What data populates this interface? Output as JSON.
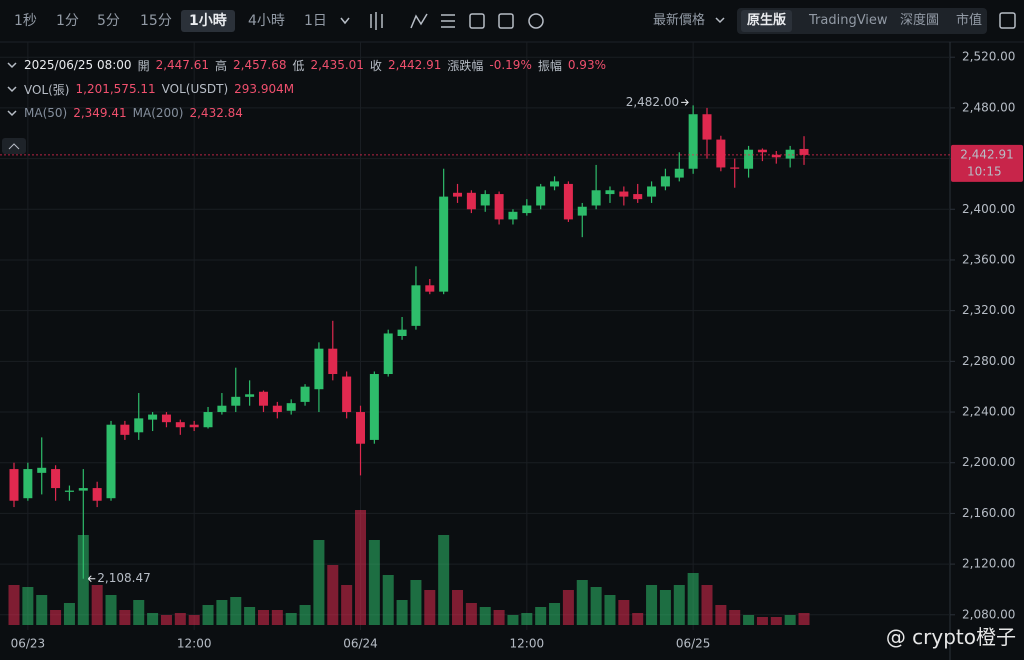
{
  "toolbar": {
    "intervals": [
      "1秒",
      "1分",
      "5分",
      "15分",
      "1小時",
      "4小時",
      "1日"
    ],
    "price_type": "最新價格",
    "views": [
      "原生版",
      "TradingView",
      "深度圖",
      "市值"
    ]
  },
  "info": {
    "datetime": "2025/06/25 08:00",
    "ohlc": [
      {
        "label": "開",
        "value": "2,447.61"
      },
      {
        "label": "高",
        "value": "2,457.68"
      },
      {
        "label": "低",
        "value": "2,435.01"
      },
      {
        "label": "收",
        "value": "2,442.91"
      },
      {
        "label": "漲跌幅",
        "value": "-0.19%"
      },
      {
        "label": "振幅",
        "value": "0.93%"
      }
    ],
    "volume": [
      {
        "label": "VOL(張)",
        "value": "1,201,575.11"
      },
      {
        "label": "VOL(USDT)",
        "value": "293.904M"
      }
    ],
    "ma": [
      {
        "label": "MA(50)",
        "value": "2,349.41"
      },
      {
        "label": "MA(200)",
        "value": "2,432.84"
      }
    ]
  },
  "watermark": "@ crypto橙子",
  "chart_data": {
    "type": "candlestick",
    "categories": [
      null,
      "06/23",
      null,
      null,
      null,
      null,
      null,
      null,
      null,
      null,
      null,
      null,
      null,
      "12:00",
      null,
      null,
      null,
      null,
      null,
      null,
      null,
      null,
      null,
      null,
      null,
      "06/24",
      null,
      null,
      null,
      null,
      null,
      null,
      null,
      null,
      null,
      null,
      null,
      "12:00",
      null,
      null,
      null,
      null,
      null,
      null,
      null,
      null,
      null,
      null,
      null,
      "06/25",
      null,
      null,
      null,
      null,
      null,
      null,
      null,
      null
    ],
    "open": [
      2195,
      2172,
      2192,
      2195,
      2177,
      2178,
      2180,
      2172,
      2230,
      2224,
      2234,
      2238,
      2232,
      2230,
      2228,
      2240,
      2245,
      2252,
      2256,
      2245,
      2241,
      2248,
      2258,
      2290,
      2268,
      2240,
      2218,
      2270,
      2300,
      2308,
      2340,
      2335,
      2413,
      2413,
      2403,
      2412,
      2392,
      2397,
      2403,
      2418,
      2420,
      2395,
      2403,
      2412,
      2414,
      2412,
      2410,
      2418,
      2425,
      2432,
      2475,
      2455,
      2433,
      2432,
      2447,
      2443,
      2440,
      2447.61
    ],
    "high": [
      2200,
      2200,
      2220,
      2198,
      2182,
      2195,
      2185,
      2233,
      2233,
      2255,
      2240,
      2240,
      2234,
      2233,
      2244,
      2255,
      2275,
      2265,
      2257,
      2248,
      2250,
      2262,
      2295,
      2312,
      2272,
      2245,
      2272,
      2305,
      2315,
      2355,
      2345,
      2432,
      2420,
      2415,
      2415,
      2414,
      2400,
      2408,
      2420,
      2426,
      2422,
      2405,
      2435,
      2418,
      2418,
      2420,
      2422,
      2432,
      2445,
      2482,
      2480,
      2458,
      2440,
      2450,
      2448,
      2446,
      2450,
      2457.68
    ],
    "low": [
      2165,
      2170,
      2175,
      2170,
      2170,
      2108.47,
      2165,
      2170,
      2218,
      2218,
      2225,
      2228,
      2222,
      2225,
      2227,
      2238,
      2240,
      2245,
      2240,
      2235,
      2238,
      2245,
      2240,
      2265,
      2235,
      2190,
      2215,
      2268,
      2297,
      2305,
      2333,
      2333,
      2405,
      2397,
      2398,
      2388,
      2388,
      2395,
      2400,
      2415,
      2390,
      2378,
      2400,
      2405,
      2403,
      2405,
      2405,
      2415,
      2422,
      2428,
      2440,
      2430,
      2417,
      2425,
      2438,
      2436,
      2433,
      2435.01
    ],
    "close": [
      2170,
      2195,
      2196,
      2180,
      2178,
      2180,
      2170,
      2230,
      2222,
      2235,
      2238,
      2232,
      2228,
      2228,
      2240,
      2245,
      2252,
      2254,
      2245,
      2240,
      2247,
      2260,
      2290,
      2270,
      2240,
      2215,
      2270,
      2302,
      2305,
      2340,
      2335,
      2410,
      2410,
      2400,
      2412,
      2392,
      2398,
      2403,
      2418,
      2422,
      2392,
      2402,
      2415,
      2415,
      2410,
      2408,
      2418,
      2426,
      2432,
      2475,
      2455,
      2433,
      2432,
      2447,
      2445,
      2441,
      2447,
      2442.91
    ],
    "volume": [
      40,
      38,
      30,
      15,
      22,
      90,
      40,
      30,
      15,
      25,
      12,
      10,
      12,
      10,
      20,
      25,
      28,
      18,
      15,
      15,
      12,
      20,
      85,
      60,
      40,
      115,
      85,
      50,
      25,
      45,
      35,
      90,
      35,
      22,
      18,
      15,
      10,
      12,
      18,
      22,
      35,
      45,
      38,
      30,
      25,
      12,
      40,
      35,
      40,
      52,
      40,
      20,
      15,
      10,
      8,
      8,
      10,
      12
    ],
    "volume_lim": [
      0,
      120
    ],
    "up_color": "#2ebd6b",
    "down_color": "#e0294f",
    "ylim": [
      2068,
      2532
    ],
    "yticks": [
      {
        "value": 2080,
        "label": "2,080.00"
      },
      {
        "value": 2120,
        "label": "2,120.00"
      },
      {
        "value": 2160,
        "label": "2,160.00"
      },
      {
        "value": 2200,
        "label": "2,200.00"
      },
      {
        "value": 2240,
        "label": "2,240.00"
      },
      {
        "value": 2280,
        "label": "2,280.00"
      },
      {
        "value": 2320,
        "label": "2,320.00"
      },
      {
        "value": 2360,
        "label": "2,360.00"
      },
      {
        "value": 2400,
        "label": "2,400.00"
      },
      {
        "value": 2440,
        "label": "2,440.00"
      },
      {
        "value": 2480,
        "label": "2,480.00"
      },
      {
        "value": 2520,
        "label": "2,520.00"
      }
    ],
    "annotations": [
      "2,482.00",
      "2,108.47"
    ],
    "price_label": "2,442.91",
    "countdown": "10:15",
    "grid": true
  }
}
